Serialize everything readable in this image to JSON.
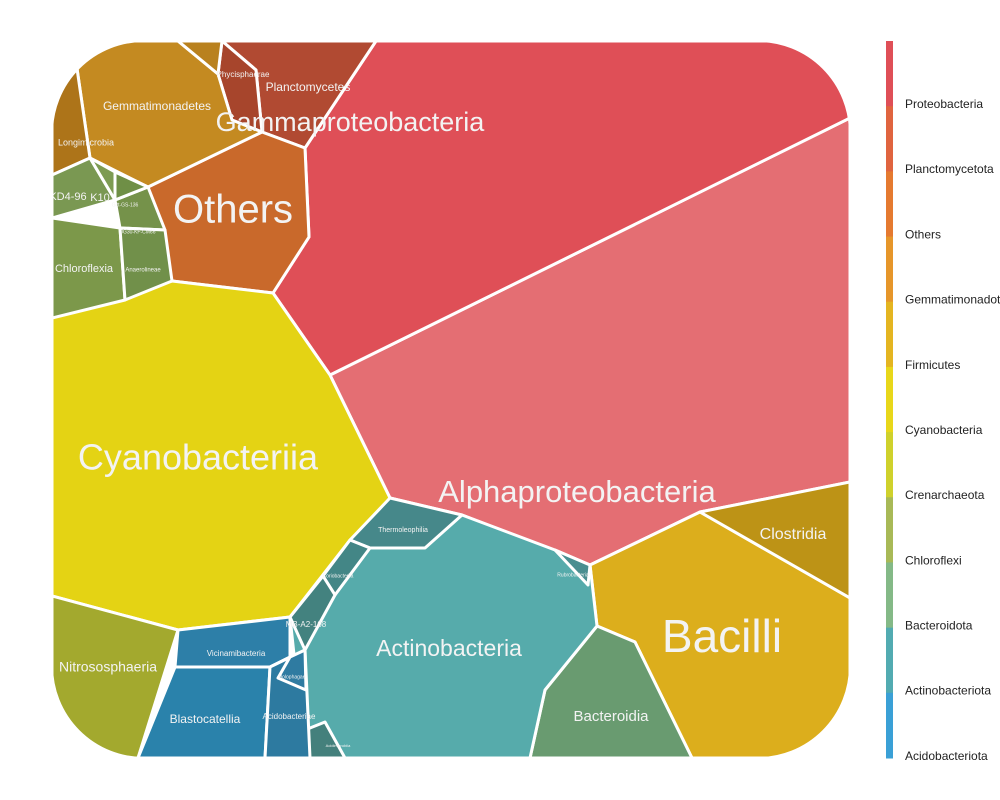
{
  "chart_data": {
    "type": "voronoi-treemap",
    "legend": {
      "placement": "right",
      "entries": [
        {
          "label": "Proteobacteria",
          "color": "#df4f57"
        },
        {
          "label": "Planctomycetota",
          "color": "#e0643f"
        },
        {
          "label": "Others",
          "color": "#e57a30"
        },
        {
          "label": "Gemmatimonadota",
          "color": "#e6962a"
        },
        {
          "label": "Firmicutes",
          "color": "#e4b521"
        },
        {
          "label": "Cyanobacteria",
          "color": "#e8d71a"
        },
        {
          "label": "Crenarchaeota",
          "color": "#cfd12c"
        },
        {
          "label": "Chloroflexi",
          "color": "#a8b957"
        },
        {
          "label": "Bacteroidota",
          "color": "#84b987"
        },
        {
          "label": "Actinobacteriota",
          "color": "#52abb1"
        },
        {
          "label": "Acidobacteriota",
          "color": "#3aa0d6"
        }
      ]
    },
    "cells": [
      {
        "label": "Alphaproteobacteria",
        "phylum": "Proteobacteria",
        "color": "#e46e73"
      },
      {
        "label": "Gammaproteobacteria",
        "phylum": "Proteobacteria",
        "color": "#df4f57"
      },
      {
        "label": "Planctomycetes",
        "phylum": "Planctomycetota",
        "color": "#b14a32"
      },
      {
        "label": "Phycisphaerae",
        "phylum": "Planctomycetota",
        "color": "#a7452c"
      },
      {
        "label": "Others",
        "phylum": "Others",
        "color": "#c9692b"
      },
      {
        "label": "Gemmatimonadetes",
        "phylum": "Gemmatimonadota",
        "color": "#c48a21"
      },
      {
        "label": "Longimicrobia",
        "phylum": "Gemmatimonadota",
        "color": "#ad7419"
      },
      {
        "label": "",
        "phylum": "Gemmatimonadota",
        "color": "#b9811e"
      },
      {
        "label": "Cyanobacteriia",
        "phylum": "Cyanobacteria",
        "color": "#e4d314"
      },
      {
        "label": "Bacilli",
        "phylum": "Firmicutes",
        "color": "#dcae1c"
      },
      {
        "label": "Clostridia",
        "phylum": "Firmicutes",
        "color": "#bd9316"
      },
      {
        "label": "Nitrososphaeria",
        "phylum": "Crenarchaeota",
        "color": "#a3a92e"
      },
      {
        "label": "Chloroflexia",
        "phylum": "Chloroflexi",
        "color": "#7c984a"
      },
      {
        "label": "JG30-KF-CM66",
        "phylum": "Chloroflexi",
        "color": "#75924a"
      },
      {
        "label": "Anaerolineae",
        "phylum": "Chloroflexi",
        "color": "#71904a"
      },
      {
        "label": "KD4-96",
        "phylum": "Chloroflexi",
        "color": "#7a9852"
      },
      {
        "label": "K10",
        "phylum": "Chloroflexi",
        "color": "#7d9b52"
      },
      {
        "label": "Gitt-GS-136",
        "phylum": "Chloroflexi",
        "color": "#6f8f46"
      },
      {
        "label": "Bacteroidia",
        "phylum": "Bacteroidota",
        "color": "#699b70"
      },
      {
        "label": "Actinobacteria",
        "phylum": "Actinobacteriota",
        "color": "#56abab"
      },
      {
        "label": "Thermoleophilia",
        "phylum": "Actinobacteriota",
        "color": "#46888a"
      },
      {
        "label": "Coriobacteriia",
        "phylum": "Actinobacteriota",
        "color": "#438686"
      },
      {
        "label": "MB-A2-108",
        "phylum": "Actinobacteriota",
        "color": "#43827f"
      },
      {
        "label": "Rubrobacteria",
        "phylum": "Actinobacteriota",
        "color": "#4a8e90"
      },
      {
        "label": "Acidimicrobiia",
        "phylum": "Actinobacteriota",
        "color": "#44807c"
      },
      {
        "label": "Vicinamibacteria",
        "phylum": "Acidobacteriota",
        "color": "#2d7fa8"
      },
      {
        "label": "Blastocatellia",
        "phylum": "Acidobacteriota",
        "color": "#2a82ab"
      },
      {
        "label": "Acidobacteriae",
        "phylum": "Acidobacteriota",
        "color": "#2d7aa0"
      },
      {
        "label": "Holophagae",
        "phylum": "Acidobacteriota",
        "color": "#2f7ba1"
      }
    ]
  }
}
